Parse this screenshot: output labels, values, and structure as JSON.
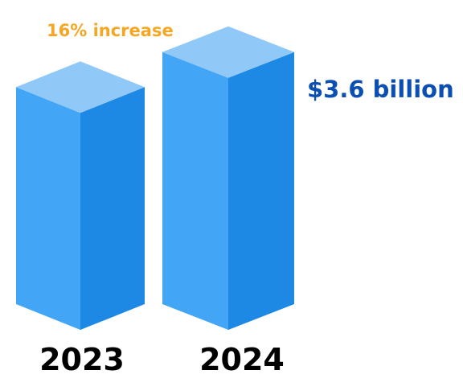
{
  "chart_data": {
    "type": "bar",
    "style": "3d-isometric",
    "categories": [
      "2023",
      "2024"
    ],
    "values": [
      3.1,
      3.6
    ],
    "unit": "billion USD",
    "annotations": [
      {
        "text": "16% increase",
        "color": "#f5a623"
      },
      {
        "text": "$3.6 billion",
        "color": "#0b4fb3"
      }
    ],
    "colors": {
      "top": "#90c8f7",
      "front": "#42a5f5",
      "side": "#1e88e5"
    },
    "grid": false,
    "legend": "none"
  }
}
